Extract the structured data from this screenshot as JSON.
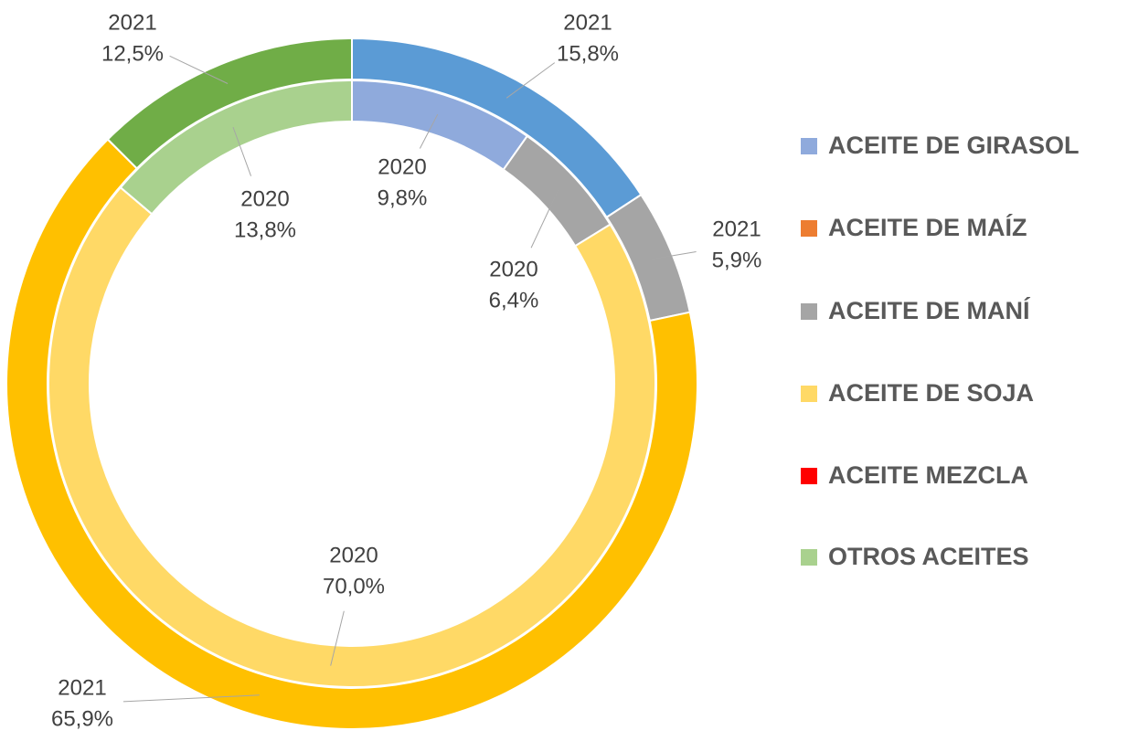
{
  "chart_data": {
    "type": "donut",
    "categories": [
      "ACEITE DE GIRASOL",
      "ACEITE DE MAÍZ",
      "ACEITE DE MANÍ",
      "ACEITE DE SOJA",
      "ACEITE MEZCLA",
      "OTROS ACEITES"
    ],
    "series": [
      {
        "name": "2020",
        "colors": [
          "#8faadc",
          "#ed7d31",
          "#a5a5a5",
          "#ffd966",
          "#ff0000",
          "#a9d18e"
        ],
        "values": [
          9.8,
          0,
          6.4,
          70.0,
          0,
          13.8
        ],
        "value_labels": [
          "9,8%",
          null,
          "6,4%",
          "70,0%",
          null,
          "13,8%"
        ]
      },
      {
        "name": "2021",
        "colors": [
          "#5b9bd5",
          "#ed7d31",
          "#a5a5a5",
          "#ffc000",
          "#ff0000",
          "#70ad47"
        ],
        "values": [
          15.8,
          0,
          5.9,
          65.9,
          0,
          12.5
        ],
        "value_labels": [
          "15,8%",
          null,
          "5,9%",
          "65,9%",
          null,
          "12,5%"
        ]
      }
    ],
    "legend": "right"
  }
}
